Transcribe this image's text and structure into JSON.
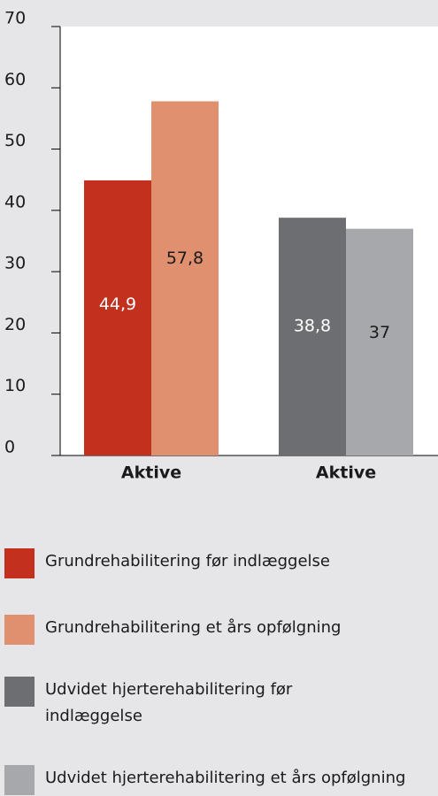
{
  "chart_data": {
    "type": "bar",
    "categories": [
      "Aktive",
      "Aktive"
    ],
    "series": [
      {
        "name": "Grundrehabilitering før indlæggelse",
        "color": "#c4301e",
        "values": [
          44.9,
          null
        ],
        "value_labels": [
          "44,9",
          null
        ]
      },
      {
        "name": "Grundrehabilitering et års opfølgning",
        "color": "#e08f6f",
        "values": [
          57.8,
          null
        ],
        "value_labels": [
          "57,8",
          null
        ]
      },
      {
        "name": "Udvidet hjerterehabilitering før indlæggelse",
        "color": "#6d6e71",
        "values": [
          null,
          38.8
        ],
        "value_labels": [
          null,
          "38,8"
        ]
      },
      {
        "name": "Udvidet hjerterehabilitering et års opfølgning",
        "color": "#a7a8ab",
        "values": [
          null,
          37
        ],
        "value_labels": [
          null,
          "37"
        ]
      }
    ],
    "ylim": [
      0,
      70
    ],
    "yticks": [
      0,
      10,
      20,
      30,
      40,
      50,
      60,
      70
    ]
  }
}
